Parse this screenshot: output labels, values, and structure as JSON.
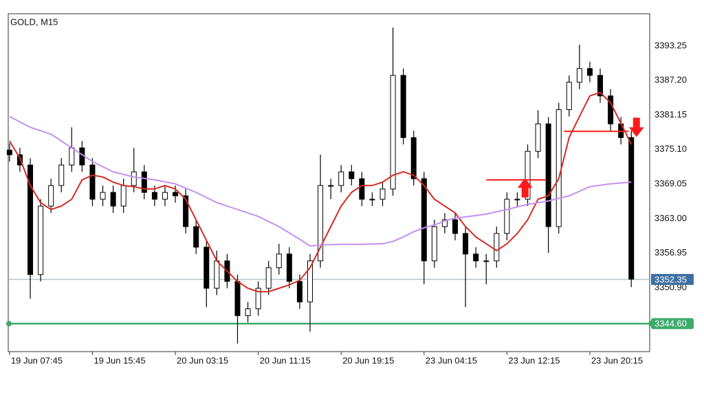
{
  "chart_data": {
    "type": "candlestick",
    "title": "GOLD, M15",
    "x": [
      0,
      4,
      8,
      12,
      16,
      20,
      24,
      28,
      32,
      36,
      40,
      44,
      48,
      52,
      56,
      60,
      64,
      68,
      72,
      76,
      80,
      84,
      88,
      92,
      96,
      100,
      104,
      108,
      112,
      116,
      120,
      124,
      128,
      132,
      136,
      140,
      144,
      148,
      152,
      156,
      160,
      164,
      168,
      172,
      176,
      180,
      184,
      188,
      192,
      196,
      200,
      204,
      208,
      212,
      216,
      220,
      224,
      228,
      232,
      236,
      240
    ],
    "open": [
      3375.0,
      3374.2,
      3372.4,
      3353.2,
      3365.2,
      3368.8,
      3372.4,
      3375.4,
      3372.4,
      3366.4,
      3367.6,
      3365.2,
      3368.8,
      3371.2,
      3367.6,
      3366.4,
      3367.6,
      3367.0,
      3361.6,
      3358.0,
      3350.8,
      3355.6,
      3352.0,
      3346.0,
      3347.2,
      3350.8,
      3354.4,
      3356.8,
      3352.0,
      3348.4,
      3355.6,
      3368.8,
      3368.8,
      3371.2,
      3370.0,
      3366.4,
      3366.4,
      3368.2,
      3388.1,
      3377.2,
      3370.0,
      3355.6,
      3361.6,
      3362.8,
      3360.4,
      3356.8,
      3355.6,
      3355.6,
      3360.4,
      3366.4,
      3366.4,
      3374.8,
      3379.6,
      3361.6,
      3382.1,
      3386.9,
      3389.3,
      3388.1,
      3384.5,
      3379.6,
      3377.2
    ],
    "high": [
      3376.2,
      3375.4,
      3373.6,
      3366.4,
      3370.0,
      3373.6,
      3379.0,
      3376.6,
      3373.6,
      3368.8,
      3368.8,
      3370.0,
      3375.4,
      3372.4,
      3368.8,
      3368.8,
      3368.8,
      3368.2,
      3362.8,
      3359.2,
      3357.4,
      3356.8,
      3353.2,
      3348.4,
      3352.0,
      3355.6,
      3358.6,
      3358.0,
      3353.2,
      3356.8,
      3374.2,
      3370.0,
      3372.4,
      3372.4,
      3371.2,
      3367.6,
      3369.4,
      3396.5,
      3389.3,
      3378.4,
      3371.2,
      3362.8,
      3364.0,
      3364.0,
      3361.6,
      3358.0,
      3356.8,
      3361.6,
      3367.6,
      3367.6,
      3376.0,
      3382.0,
      3380.8,
      3383.3,
      3388.1,
      3393.5,
      3390.5,
      3389.3,
      3385.7,
      3380.8,
      3378.4
    ],
    "low": [
      3373.0,
      3371.2,
      3349.0,
      3352.0,
      3364.0,
      3367.6,
      3371.2,
      3371.2,
      3365.2,
      3365.2,
      3364.0,
      3364.0,
      3367.6,
      3366.4,
      3365.2,
      3365.2,
      3365.8,
      3360.4,
      3356.8,
      3347.5,
      3349.6,
      3350.8,
      3341.1,
      3344.8,
      3346.0,
      3349.6,
      3353.2,
      3350.8,
      3347.2,
      3343.2,
      3354.4,
      3366.4,
      3367.6,
      3368.8,
      3365.2,
      3365.2,
      3365.2,
      3367.0,
      3376.0,
      3368.8,
      3351.5,
      3354.4,
      3360.4,
      3359.2,
      3347.5,
      3354.4,
      3351.5,
      3354.4,
      3359.2,
      3365.2,
      3365.2,
      3373.6,
      3357.0,
      3360.4,
      3380.9,
      3385.7,
      3386.9,
      3383.3,
      3378.4,
      3376.0,
      3351.0
    ],
    "close": [
      3374.2,
      3372.4,
      3353.2,
      3365.2,
      3368.8,
      3372.4,
      3375.4,
      3372.4,
      3366.4,
      3367.6,
      3365.2,
      3368.8,
      3371.2,
      3367.6,
      3366.4,
      3367.6,
      3367.0,
      3361.6,
      3358.0,
      3350.8,
      3355.6,
      3352.0,
      3346.0,
      3347.2,
      3350.8,
      3354.4,
      3356.8,
      3352.0,
      3348.4,
      3355.6,
      3368.8,
      3368.8,
      3371.2,
      3370.0,
      3366.4,
      3366.4,
      3368.2,
      3388.1,
      3377.2,
      3370.0,
      3355.6,
      3361.6,
      3362.8,
      3360.4,
      3356.8,
      3355.6,
      3355.6,
      3360.4,
      3366.4,
      3366.4,
      3374.8,
      3379.6,
      3361.6,
      3382.1,
      3386.9,
      3389.3,
      3388.1,
      3384.5,
      3379.6,
      3377.2,
      3352.4
    ],
    "up_color": "#ffffff",
    "down_color": "#000000",
    "lines": [
      {
        "color": "#d42a20",
        "x": [
          0,
          4,
          8,
          12,
          16,
          20,
          24,
          28,
          32,
          36,
          40,
          44,
          48,
          52,
          56,
          60,
          64,
          68,
          72,
          76,
          80,
          84,
          88,
          92,
          96,
          100,
          104,
          108,
          112,
          116,
          120,
          124,
          128,
          132,
          136,
          140,
          144,
          148,
          152,
          156,
          160,
          164,
          168,
          172,
          176,
          180,
          184,
          188,
          192,
          196,
          200,
          204,
          208,
          212,
          216,
          220,
          224,
          228,
          232,
          236,
          240
        ],
        "values": [
          3376.6,
          3373.6,
          3368.8,
          3365.8,
          3364.6,
          3365.2,
          3366.4,
          3369.8,
          3370.6,
          3370.3,
          3369.4,
          3368.8,
          3368.6,
          3368.2,
          3368.2,
          3368.8,
          3368.2,
          3366.4,
          3362.8,
          3359.2,
          3355.6,
          3353.8,
          3352.0,
          3350.8,
          3350.2,
          3350.2,
          3350.8,
          3351.4,
          3352.2,
          3354.4,
          3358.0,
          3361.6,
          3365.2,
          3367.6,
          3368.8,
          3368.8,
          3369.4,
          3370.6,
          3371.2,
          3370.6,
          3368.8,
          3366.4,
          3365.2,
          3364.0,
          3361.6,
          3359.8,
          3358.6,
          3357.4,
          3358.6,
          3360.4,
          3362.8,
          3366.4,
          3367.0,
          3370.0,
          3377.2,
          3380.9,
          3384.5,
          3385.1,
          3383.3,
          3379.7,
          3376.0
        ]
      },
      {
        "color": "#c38ff0",
        "x": [
          0,
          8,
          16,
          24,
          32,
          40,
          48,
          56,
          64,
          72,
          80,
          88,
          96,
          104,
          112,
          116,
          120,
          128,
          136,
          144,
          148,
          152,
          156,
          160,
          164,
          168,
          172,
          176,
          184,
          192,
          200,
          208,
          216,
          224,
          232,
          240
        ],
        "values": [
          3380.9,
          3379.0,
          3377.8,
          3375.4,
          3373.0,
          3371.2,
          3370.3,
          3369.8,
          3369.1,
          3367.6,
          3365.8,
          3364.6,
          3363.4,
          3361.6,
          3359.4,
          3358.2,
          3358.4,
          3358.5,
          3358.5,
          3358.6,
          3359.0,
          3359.8,
          3360.7,
          3361.4,
          3361.9,
          3362.6,
          3363.1,
          3363.3,
          3363.8,
          3364.6,
          3365.5,
          3366.1,
          3367.0,
          3368.6,
          3369.1,
          3369.4
        ]
      }
    ],
    "signals": [
      {
        "direction": "up",
        "color": "#ff1a1a",
        "x": 199,
        "price": 3368.4,
        "level": 3369.8,
        "from": 184,
        "to": 207
      },
      {
        "direction": "down",
        "color": "#ff1a1a",
        "x": 242,
        "price": 3379.0,
        "level": 3378.3,
        "from": 214,
        "to": 239
      }
    ],
    "price_lines": [
      {
        "value": 3352.35,
        "label": "3352.35",
        "color": "#3d6fa0",
        "line_color": "#8aa7a7"
      },
      {
        "value": 3344.6,
        "label": "3344.60",
        "color": "#3daa6a",
        "line_color": "#3daa6a"
      }
    ],
    "xlim": [
      -0.5,
      247.1
    ],
    "ylim": [
      3339.7,
      3398.9
    ],
    "xticks": [
      {
        "value": 0,
        "label": "19 Jun 07:45"
      },
      {
        "value": 32,
        "label": "19 Jun 15:45"
      },
      {
        "value": 64,
        "label": "20 Jun 03:15"
      },
      {
        "value": 96,
        "label": "20 Jun 11:15"
      },
      {
        "value": 128,
        "label": "20 Jun 19:15"
      },
      {
        "value": 160,
        "label": "23 Jun 04:15"
      },
      {
        "value": 192,
        "label": "23 Jun 12:15"
      },
      {
        "value": 224,
        "label": "23 Jun 20:15"
      }
    ],
    "yticks": [
      3393.25,
      {
        "value": 3387.2,
        "label": "3387.20"
      },
      3381.15,
      {
        "value": 3375.1,
        "label": "3375.10"
      },
      3369.05,
      {
        "value": 3363,
        "label": "3363.00"
      },
      3356.95,
      {
        "value": 3350.9,
        "label": "3350.90"
      }
    ],
    "grid": true
  }
}
